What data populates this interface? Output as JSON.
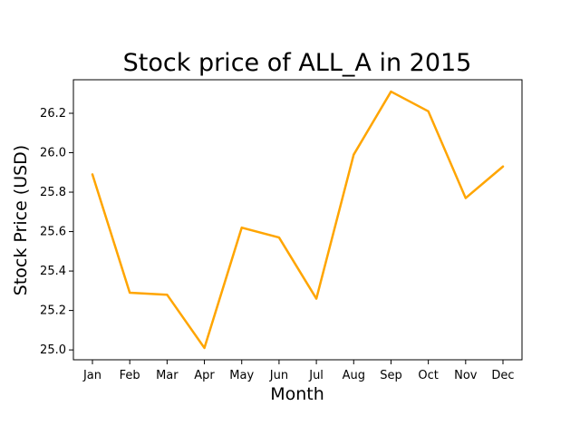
{
  "chart_data": {
    "type": "line",
    "title": "Stock price of ALL_A in 2015",
    "xlabel": "Month",
    "ylabel": "Stock Price (USD)",
    "categories": [
      "Jan",
      "Feb",
      "Mar",
      "Apr",
      "May",
      "Jun",
      "Jul",
      "Aug",
      "Sep",
      "Oct",
      "Nov",
      "Dec"
    ],
    "series": [
      {
        "values": [
          25.89,
          25.29,
          25.28,
          25.01,
          25.62,
          25.57,
          25.26,
          25.99,
          26.31,
          26.21,
          25.77,
          25.93
        ],
        "color": "#ffa500"
      }
    ],
    "ylim": [
      24.95,
      26.37
    ],
    "yticks": [
      25.0,
      25.2,
      25.4,
      25.6,
      25.8,
      26.0,
      26.2
    ],
    "ytick_labels": [
      "25.0",
      "25.2",
      "25.4",
      "25.6",
      "25.8",
      "26.0",
      "26.2"
    ],
    "grid": false,
    "legend": "none"
  }
}
